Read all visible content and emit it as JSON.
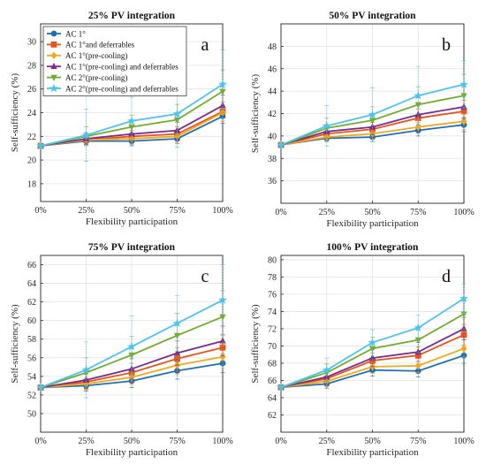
{
  "figure": {
    "panels_shared": {
      "xlabel": "Flexibility participation",
      "ylabel": "Self-sufficiency (%)",
      "x_tick_labels": [
        "0%",
        "25%",
        "50%",
        "75%",
        "100%"
      ]
    }
  },
  "series_styles": [
    {
      "color": "#1f6fb5",
      "marker": "circle"
    },
    {
      "color": "#e8541b",
      "marker": "square"
    },
    {
      "color": "#f2a81d",
      "marker": "diamond"
    },
    {
      "color": "#7a2c8e",
      "marker": "triangle-up"
    },
    {
      "color": "#73ad2d",
      "marker": "triangle-down"
    },
    {
      "color": "#4cc4ef",
      "marker": "star"
    }
  ],
  "legend": {
    "entries": [
      "AC 1°",
      "AC 1°and deferrables",
      "AC 1°(pre-cooling)",
      "AC 1°(pre-cooling) and deferrables",
      "AC 2°(pre-cooling)",
      "AC 2°(pre-cooling) and deferrables"
    ],
    "placement": "top-left of panel a"
  },
  "chart_data": [
    {
      "type": "line",
      "panel_letter": "a",
      "title": "25% PV integration",
      "xlabel": "Flexibility participation",
      "ylabel": "Self-sufficiency (%)",
      "categories": [
        "0%",
        "25%",
        "50%",
        "75%",
        "100%"
      ],
      "x": [
        0,
        25,
        50,
        75,
        100
      ],
      "ylim": [
        16.5,
        31.5
      ],
      "yticks": [
        18,
        20,
        22,
        24,
        26,
        28,
        30
      ],
      "grid": true,
      "legend": true,
      "error_bars": true,
      "series": [
        {
          "name": "AC 1°",
          "values": [
            21.2,
            21.6,
            21.6,
            21.8,
            23.7
          ],
          "err": [
            0,
            0.3,
            0.4,
            0.4,
            0.6
          ]
        },
        {
          "name": "AC 1°and deferrables",
          "values": [
            21.2,
            21.7,
            22.0,
            22.2,
            24.1
          ],
          "err": [
            0,
            0.4,
            0.5,
            0.6,
            0.8
          ]
        },
        {
          "name": "AC 1°(pre-cooling)",
          "values": [
            21.2,
            21.7,
            21.8,
            22.0,
            24.0
          ],
          "err": [
            0,
            0.4,
            0.5,
            0.5,
            0.7
          ]
        },
        {
          "name": "AC 1°(pre-cooling) and deferrables",
          "values": [
            21.2,
            21.8,
            22.2,
            22.5,
            24.6
          ],
          "err": [
            0,
            0.5,
            0.6,
            0.7,
            0.9
          ]
        },
        {
          "name": "AC 2°(pre-cooling)",
          "values": [
            21.2,
            22.0,
            22.8,
            23.4,
            25.8
          ],
          "err": [
            0,
            0.8,
            1.0,
            1.3,
            1.8
          ]
        },
        {
          "name": "AC 2°(pre-cooling) and deferrables",
          "values": [
            21.2,
            22.1,
            23.3,
            23.9,
            26.4
          ],
          "err": [
            0,
            2.2,
            2.0,
            2.8,
            2.9
          ]
        }
      ]
    },
    {
      "type": "line",
      "panel_letter": "b",
      "title": "50% PV integration",
      "xlabel": "Flexibility participation",
      "ylabel": "Self-sufficiency (%)",
      "categories": [
        "0%",
        "25%",
        "50%",
        "75%",
        "100%"
      ],
      "x": [
        0,
        25,
        50,
        75,
        100
      ],
      "ylim": [
        34,
        50
      ],
      "yticks": [
        36,
        38,
        40,
        42,
        44,
        46,
        48
      ],
      "grid": true,
      "legend": false,
      "error_bars": true,
      "series": [
        {
          "name": "AC 1°",
          "values": [
            39.2,
            39.8,
            39.9,
            40.5,
            41.0
          ],
          "err": [
            0,
            0.3,
            0.4,
            0.5,
            0.6
          ]
        },
        {
          "name": "AC 1°and deferrables",
          "values": [
            39.2,
            40.2,
            40.6,
            41.6,
            42.2
          ],
          "err": [
            0,
            0.5,
            0.6,
            0.8,
            1.0
          ]
        },
        {
          "name": "AC 1°(pre-cooling)",
          "values": [
            39.2,
            39.9,
            40.2,
            40.8,
            41.3
          ],
          "err": [
            0,
            0.4,
            0.5,
            0.6,
            0.7
          ]
        },
        {
          "name": "AC 1°(pre-cooling) and deferrables",
          "values": [
            39.2,
            40.4,
            40.8,
            41.9,
            42.6
          ],
          "err": [
            0,
            0.6,
            0.7,
            0.9,
            1.1
          ]
        },
        {
          "name": "AC 2°(pre-cooling)",
          "values": [
            39.2,
            40.7,
            41.4,
            42.8,
            43.6
          ],
          "err": [
            0,
            0.9,
            1.2,
            1.6,
            1.9
          ]
        },
        {
          "name": "AC 2°(pre-cooling) and deferrables",
          "values": [
            39.2,
            40.9,
            41.9,
            43.6,
            44.6
          ],
          "err": [
            0,
            1.8,
            2.4,
            2.6,
            2.1
          ]
        }
      ]
    },
    {
      "type": "line",
      "panel_letter": "c",
      "title": "75% PV integration",
      "xlabel": "Flexibility participation",
      "ylabel": "Self-sufficiency (%)",
      "categories": [
        "0%",
        "25%",
        "50%",
        "75%",
        "100%"
      ],
      "x": [
        0,
        25,
        50,
        75,
        100
      ],
      "ylim": [
        48,
        67
      ],
      "yticks": [
        50,
        52,
        54,
        56,
        58,
        60,
        62,
        64,
        66
      ],
      "grid": true,
      "legend": false,
      "error_bars": true,
      "series": [
        {
          "name": "AC 1°",
          "values": [
            52.8,
            53.0,
            53.5,
            54.6,
            55.4
          ],
          "err": [
            0,
            0.6,
            0.7,
            0.9,
            1.0
          ]
        },
        {
          "name": "AC 1°and deferrables",
          "values": [
            52.8,
            53.4,
            54.4,
            55.9,
            57.1
          ],
          "err": [
            0,
            0.8,
            1.0,
            1.2,
            1.4
          ]
        },
        {
          "name": "AC 1°(pre-cooling)",
          "values": [
            52.8,
            53.2,
            53.9,
            55.2,
            56.1
          ],
          "err": [
            0,
            0.7,
            0.8,
            1.0,
            1.2
          ]
        },
        {
          "name": "AC 1°(pre-cooling) and deferrables",
          "values": [
            52.8,
            53.6,
            54.8,
            56.5,
            57.8
          ],
          "err": [
            0,
            0.9,
            1.1,
            1.3,
            1.6
          ]
        },
        {
          "name": "AC 2°(pre-cooling)",
          "values": [
            52.8,
            54.4,
            56.3,
            58.4,
            60.4
          ],
          "err": [
            0,
            1.6,
            2.0,
            2.4,
            2.8
          ]
        },
        {
          "name": "AC 2°(pre-cooling) and deferrables",
          "values": [
            52.8,
            54.7,
            57.2,
            59.7,
            62.2
          ],
          "err": [
            0,
            3.0,
            3.3,
            3.0,
            3.8
          ]
        }
      ]
    },
    {
      "type": "line",
      "panel_letter": "d",
      "title": "100% PV integration",
      "xlabel": "Flexibility participation",
      "ylabel": "Self-sufficiency (%)",
      "categories": [
        "0%",
        "25%",
        "50%",
        "75%",
        "100%"
      ],
      "x": [
        0,
        25,
        50,
        75,
        100
      ],
      "ylim": [
        60,
        80.5
      ],
      "yticks": [
        62,
        64,
        66,
        68,
        70,
        72,
        74,
        76,
        78,
        80
      ],
      "grid": true,
      "legend": false,
      "error_bars": true,
      "series": [
        {
          "name": "AC 1°",
          "values": [
            65.2,
            65.6,
            67.2,
            67.1,
            68.9
          ],
          "err": [
            0,
            0.5,
            0.7,
            0.7,
            0.9
          ]
        },
        {
          "name": "AC 1°and deferrables",
          "values": [
            65.2,
            66.2,
            68.3,
            68.9,
            71.3
          ],
          "err": [
            0,
            0.7,
            0.9,
            1.0,
            1.2
          ]
        },
        {
          "name": "AC 1°(pre-cooling)",
          "values": [
            65.2,
            65.9,
            67.6,
            67.7,
            69.7
          ],
          "err": [
            0,
            0.6,
            0.8,
            0.8,
            1.0
          ]
        },
        {
          "name": "AC 1°(pre-cooling) and deferrables",
          "values": [
            65.2,
            66.4,
            68.6,
            69.3,
            72.0
          ],
          "err": [
            0,
            0.8,
            1.0,
            1.1,
            1.3
          ]
        },
        {
          "name": "AC 2°(pre-cooling)",
          "values": [
            65.2,
            66.9,
            69.7,
            70.7,
            73.7
          ],
          "err": [
            0,
            1.0,
            1.3,
            1.5,
            1.8
          ]
        },
        {
          "name": "AC 2°(pre-cooling) and deferrables",
          "values": [
            65.2,
            67.2,
            70.4,
            72.1,
            75.5
          ],
          "err": [
            0,
            1.4,
            1.5,
            1.5,
            1.7
          ]
        }
      ]
    }
  ]
}
